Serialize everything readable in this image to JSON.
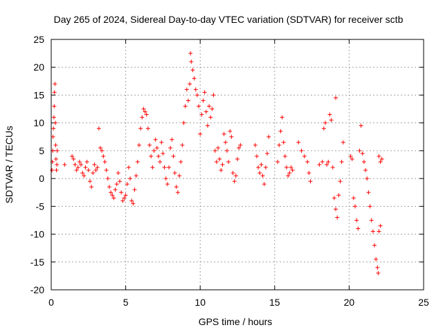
{
  "chart_data": {
    "type": "scatter",
    "title": "Day 265 of 2024, Sidereal Day-to-day VTEC variation (SDTVAR) for receiver sctb",
    "xlabel": "GPS time / hours",
    "ylabel": "SDTVAR / TECUs",
    "xlim": [
      0,
      25
    ],
    "ylim": [
      -20,
      25
    ],
    "xticks": [
      "0",
      "5",
      "10",
      "15",
      "20",
      "25"
    ],
    "yticks": [
      "25",
      "20",
      "15",
      "10",
      "5",
      "0",
      "-5",
      "-10",
      "-15",
      "-20"
    ],
    "grid": true,
    "marker": "+",
    "color": "#ff0000",
    "series": [
      {
        "name": "SDTVAR",
        "points": [
          [
            0.05,
            1.5
          ],
          [
            0.08,
            3.0
          ],
          [
            0.1,
            5.0
          ],
          [
            0.12,
            7.5
          ],
          [
            0.15,
            9.0
          ],
          [
            0.18,
            11.0
          ],
          [
            0.2,
            13.0
          ],
          [
            0.22,
            15.5
          ],
          [
            0.25,
            17.0
          ],
          [
            0.28,
            10.0
          ],
          [
            0.3,
            6.0
          ],
          [
            0.32,
            3.5
          ],
          [
            0.35,
            1.5
          ],
          [
            0.38,
            2.5
          ],
          [
            0.4,
            5.0
          ],
          [
            0.9,
            2.5
          ],
          [
            1.4,
            4.0
          ],
          [
            1.5,
            3.5
          ],
          [
            1.6,
            2.5
          ],
          [
            1.7,
            1.5
          ],
          [
            1.8,
            2.0
          ],
          [
            1.9,
            3.0
          ],
          [
            2.0,
            2.5
          ],
          [
            2.1,
            1.0
          ],
          [
            2.2,
            0.5
          ],
          [
            2.3,
            2.0
          ],
          [
            2.4,
            3.0
          ],
          [
            2.5,
            1.5
          ],
          [
            2.6,
            -0.5
          ],
          [
            2.7,
            -1.5
          ],
          [
            2.8,
            1.0
          ],
          [
            2.9,
            2.5
          ],
          [
            3.0,
            1.5
          ],
          [
            3.1,
            2.0
          ],
          [
            3.2,
            9.0
          ],
          [
            3.3,
            5.5
          ],
          [
            3.4,
            5.0
          ],
          [
            3.5,
            4.0
          ],
          [
            3.6,
            3.0
          ],
          [
            3.7,
            1.5
          ],
          [
            3.8,
            0.0
          ],
          [
            3.9,
            -1.5
          ],
          [
            4.0,
            -2.5
          ],
          [
            4.1,
            -3.0
          ],
          [
            4.2,
            -3.5
          ],
          [
            4.3,
            -2.0
          ],
          [
            4.4,
            -1.0
          ],
          [
            4.5,
            1.0
          ],
          [
            4.6,
            -0.5
          ],
          [
            4.7,
            -2.5
          ],
          [
            4.8,
            -4.0
          ],
          [
            4.9,
            -3.5
          ],
          [
            5.0,
            -3.0
          ],
          [
            5.1,
            -1.0
          ],
          [
            5.2,
            2.0
          ],
          [
            5.3,
            0.0
          ],
          [
            5.4,
            -4.0
          ],
          [
            5.5,
            -4.5
          ],
          [
            5.6,
            -2.0
          ],
          [
            5.7,
            0.5
          ],
          [
            5.8,
            3.0
          ],
          [
            5.9,
            6.0
          ],
          [
            6.0,
            9.0
          ],
          [
            6.1,
            11.0
          ],
          [
            6.2,
            12.5
          ],
          [
            6.3,
            12.0
          ],
          [
            6.4,
            11.5
          ],
          [
            6.5,
            9.0
          ],
          [
            6.6,
            6.0
          ],
          [
            6.7,
            4.0
          ],
          [
            6.8,
            2.0
          ],
          [
            6.9,
            5.0
          ],
          [
            7.0,
            7.0
          ],
          [
            7.1,
            5.5
          ],
          [
            7.2,
            4.0
          ],
          [
            7.3,
            3.0
          ],
          [
            7.4,
            6.5
          ],
          [
            7.5,
            4.5
          ],
          [
            7.6,
            2.0
          ],
          [
            7.7,
            0.0
          ],
          [
            7.8,
            -1.0
          ],
          [
            7.9,
            2.0
          ],
          [
            8.0,
            5.5
          ],
          [
            8.1,
            7.0
          ],
          [
            8.2,
            4.0
          ],
          [
            8.3,
            1.0
          ],
          [
            8.4,
            -1.5
          ],
          [
            8.5,
            -2.5
          ],
          [
            8.6,
            0.5
          ],
          [
            8.7,
            3.0
          ],
          [
            8.8,
            6.0
          ],
          [
            8.9,
            10.0
          ],
          [
            9.0,
            13.0
          ],
          [
            9.1,
            16.0
          ],
          [
            9.2,
            14.0
          ],
          [
            9.3,
            17.0
          ],
          [
            9.35,
            22.5
          ],
          [
            9.4,
            21.0
          ],
          [
            9.5,
            19.5
          ],
          [
            9.6,
            18.0
          ],
          [
            9.7,
            16.0
          ],
          [
            9.8,
            15.0
          ],
          [
            9.9,
            13.0
          ],
          [
            10.0,
            8.0
          ],
          [
            10.1,
            11.5
          ],
          [
            10.2,
            14.0
          ],
          [
            10.3,
            15.5
          ],
          [
            10.4,
            12.0
          ],
          [
            10.5,
            9.5
          ],
          [
            10.6,
            13.0
          ],
          [
            10.7,
            11.0
          ],
          [
            10.8,
            12.5
          ],
          [
            10.9,
            15.0
          ],
          [
            11.0,
            5.0
          ],
          [
            11.1,
            3.0
          ],
          [
            11.2,
            5.5
          ],
          [
            11.3,
            3.5
          ],
          [
            11.4,
            1.5
          ],
          [
            11.5,
            2.5
          ],
          [
            11.6,
            8.0
          ],
          [
            11.7,
            6.5
          ],
          [
            11.8,
            5.0
          ],
          [
            11.9,
            3.0
          ],
          [
            12.0,
            8.5
          ],
          [
            12.1,
            7.5
          ],
          [
            12.2,
            1.0
          ],
          [
            12.3,
            -0.5
          ],
          [
            12.4,
            0.5
          ],
          [
            12.5,
            3.5
          ],
          [
            12.6,
            5.5
          ],
          [
            12.7,
            6.0
          ],
          [
            13.7,
            6.0
          ],
          [
            13.8,
            4.0
          ],
          [
            13.9,
            2.0
          ],
          [
            14.0,
            1.0
          ],
          [
            14.1,
            2.5
          ],
          [
            14.2,
            0.5
          ],
          [
            14.3,
            -1.0
          ],
          [
            14.4,
            2.0
          ],
          [
            14.5,
            4.5
          ],
          [
            14.6,
            7.5
          ],
          [
            15.2,
            3.0
          ],
          [
            15.3,
            6.0
          ],
          [
            15.4,
            8.5
          ],
          [
            15.5,
            11.0
          ],
          [
            15.6,
            6.5
          ],
          [
            15.7,
            4.0
          ],
          [
            15.8,
            2.0
          ],
          [
            15.9,
            0.5
          ],
          [
            16.0,
            1.0
          ],
          [
            16.1,
            2.0
          ],
          [
            16.2,
            1.5
          ],
          [
            16.6,
            6.5
          ],
          [
            16.8,
            5.0
          ],
          [
            17.0,
            4.0
          ],
          [
            17.2,
            3.0
          ],
          [
            17.3,
            1.0
          ],
          [
            17.4,
            -0.5
          ],
          [
            18.0,
            2.5
          ],
          [
            18.2,
            3.0
          ],
          [
            18.3,
            9.0
          ],
          [
            18.4,
            10.0
          ],
          [
            18.5,
            2.5
          ],
          [
            18.6,
            3.0
          ],
          [
            18.7,
            11.5
          ],
          [
            18.8,
            10.5
          ],
          [
            18.9,
            2.0
          ],
          [
            19.0,
            -3.5
          ],
          [
            19.1,
            -5.5
          ],
          [
            19.2,
            -7.0
          ],
          [
            19.3,
            -3.0
          ],
          [
            19.4,
            -0.5
          ],
          [
            19.5,
            3.0
          ],
          [
            19.6,
            6.5
          ],
          [
            19.1,
            14.5
          ],
          [
            20.1,
            4.0
          ],
          [
            20.2,
            3.5
          ],
          [
            20.3,
            -3.5
          ],
          [
            20.4,
            -5.0
          ],
          [
            20.5,
            -7.5
          ],
          [
            20.6,
            -9.0
          ],
          [
            20.7,
            5.0
          ],
          [
            20.8,
            9.5
          ],
          [
            20.9,
            4.5
          ],
          [
            21.0,
            3.0
          ],
          [
            21.1,
            1.5
          ],
          [
            21.2,
            0.0
          ],
          [
            21.3,
            -2.5
          ],
          [
            21.4,
            -5.0
          ],
          [
            21.5,
            -7.5
          ],
          [
            21.6,
            -9.5
          ],
          [
            21.7,
            -12.0
          ],
          [
            21.8,
            -14.5
          ],
          [
            21.9,
            -16.0
          ],
          [
            21.95,
            -17.0
          ],
          [
            22.0,
            -9.5
          ],
          [
            22.1,
            -8.5
          ],
          [
            22.0,
            4.0
          ],
          [
            22.1,
            3.0
          ],
          [
            22.2,
            3.5
          ]
        ]
      }
    ]
  }
}
